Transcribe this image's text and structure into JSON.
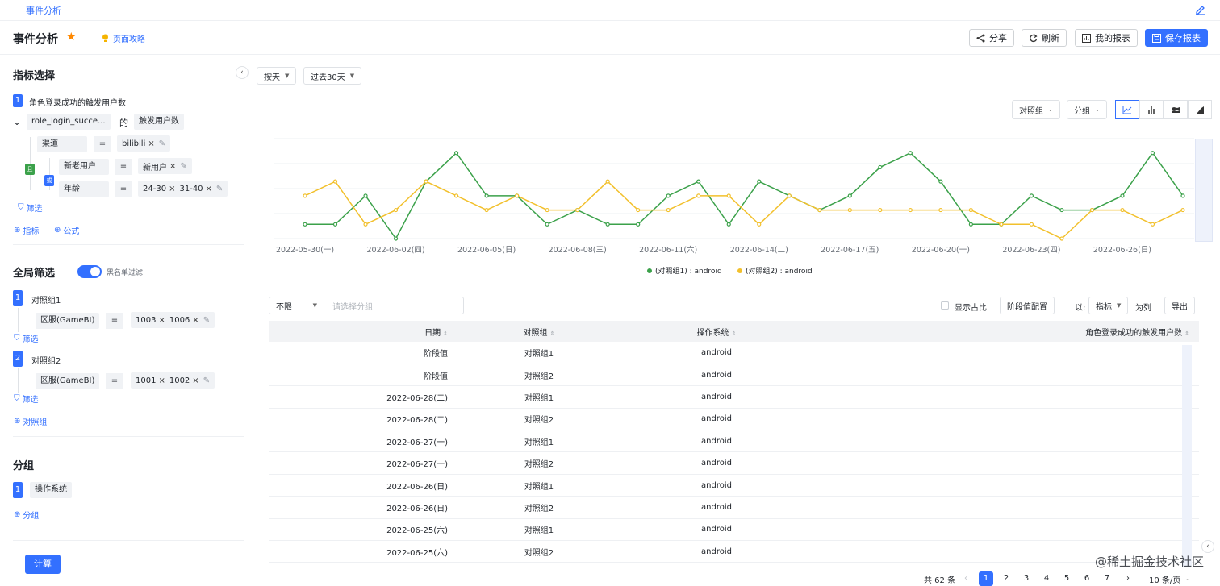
{
  "breadcrumb": "事件分析",
  "header": {
    "title": "事件分析",
    "guide": "页面攻略",
    "share": "分享",
    "refresh": "刷新",
    "my_reports": "我的报表",
    "save_report": "保存报表"
  },
  "metrics": {
    "title": "指标选择",
    "index": "1",
    "name": "角色登录成功的触发用户数",
    "event": "role_login_succe...",
    "of": "的",
    "measure": "触发用户数",
    "and_label": "且",
    "or_label": "或",
    "conditions": [
      {
        "field": "渠道",
        "op": "=",
        "values": [
          "bilibili"
        ]
      },
      {
        "field": "新老用户",
        "op": "=",
        "values": [
          "新用户"
        ]
      },
      {
        "field": "年龄",
        "op": "=",
        "values": [
          "24-30",
          "31-40"
        ]
      }
    ],
    "filter_link": "筛选",
    "add_metric": "指标",
    "add_formula": "公式"
  },
  "global_filter": {
    "title": "全局筛选",
    "toggle_label": "黑名单过滤",
    "groups": [
      {
        "index": "1",
        "name": "对照组1",
        "field": "区服(GameBI)",
        "op": "=",
        "values": [
          "1003",
          "1006"
        ]
      },
      {
        "index": "2",
        "name": "对照组2",
        "field": "区服(GameBI)",
        "op": "=",
        "values": [
          "1001",
          "1002"
        ]
      }
    ],
    "filter_link": "筛选",
    "add_group": "对照组"
  },
  "grouping": {
    "title": "分组",
    "index": "1",
    "item": "操作系统",
    "add": "分组"
  },
  "calc_button": "计算",
  "toolbar": {
    "granularity": "按天",
    "range": "过去30天",
    "compare": "对照组",
    "group": "分组"
  },
  "chart_data": {
    "type": "line",
    "categories": [
      "2022-05-30(一)",
      "05-31",
      "06-01",
      "2022-06-02(四)",
      "06-03",
      "06-04",
      "2022-06-05(日)",
      "06-06",
      "06-07",
      "2022-06-08(三)",
      "06-09",
      "06-10",
      "2022-06-11(六)",
      "06-12",
      "06-13",
      "2022-06-14(二)",
      "06-15",
      "06-16",
      "2022-06-17(五)",
      "06-18",
      "06-19",
      "2022-06-20(一)",
      "06-21",
      "06-22",
      "2022-06-23(四)",
      "06-24",
      "06-25",
      "2022-06-26(日)",
      "06-27",
      "06-28"
    ],
    "tick_labels": [
      "2022-05-30(一)",
      "2022-06-02(四)",
      "2022-06-05(日)",
      "2022-06-08(三)",
      "2022-06-11(六)",
      "2022-06-14(二)",
      "2022-06-17(五)",
      "2022-06-20(一)",
      "2022-06-23(四)",
      "2022-06-26(日)"
    ],
    "tick_index": [
      0,
      3,
      6,
      9,
      12,
      15,
      18,
      21,
      24,
      27
    ],
    "ylim": [
      0,
      7
    ],
    "series": [
      {
        "name": "(对照组1) : android",
        "color": "#3ba14a",
        "values": [
          1,
          1,
          3,
          0,
          4,
          6,
          3,
          3,
          1,
          2,
          1,
          1,
          3,
          4,
          1,
          4,
          3,
          2,
          3,
          5,
          6,
          4,
          1,
          1,
          3,
          2,
          2,
          3,
          6,
          3
        ]
      },
      {
        "name": "(对照组2) : android",
        "color": "#f2c02c",
        "values": [
          3,
          4,
          1,
          2,
          4,
          3,
          2,
          3,
          2,
          2,
          4,
          2,
          2,
          3,
          3,
          1,
          3,
          2,
          2,
          2,
          2,
          2,
          2,
          1,
          1,
          0,
          2,
          2,
          1,
          2
        ]
      }
    ]
  },
  "table_controls": {
    "filter_select": "不限",
    "filter_placeholder": "请选择分组",
    "show_ratio": "显示占比",
    "stage_config": "阶段值配置",
    "by_label": "以:",
    "by_value": "指标",
    "as_column": "为列",
    "export": "导出"
  },
  "table": {
    "columns": [
      "日期",
      "对照组",
      "操作系统",
      "角色登录成功的触发用户数"
    ],
    "rows": [
      [
        "阶段值",
        "对照组1",
        "android"
      ],
      [
        "阶段值",
        "对照组2",
        "android"
      ],
      [
        "2022-06-28(二)",
        "对照组1",
        "android"
      ],
      [
        "2022-06-28(二)",
        "对照组2",
        "android"
      ],
      [
        "2022-06-27(一)",
        "对照组1",
        "android"
      ],
      [
        "2022-06-27(一)",
        "对照组2",
        "android"
      ],
      [
        "2022-06-26(日)",
        "对照组1",
        "android"
      ],
      [
        "2022-06-26(日)",
        "对照组2",
        "android"
      ],
      [
        "2022-06-25(六)",
        "对照组1",
        "android"
      ],
      [
        "2022-06-25(六)",
        "对照组2",
        "android"
      ]
    ]
  },
  "pagination": {
    "total": "共 62 条",
    "pages": [
      "1",
      "2",
      "3",
      "4",
      "5",
      "6",
      "7"
    ],
    "page_size": "10 条/页"
  },
  "watermark": "@稀土掘金技术社区"
}
